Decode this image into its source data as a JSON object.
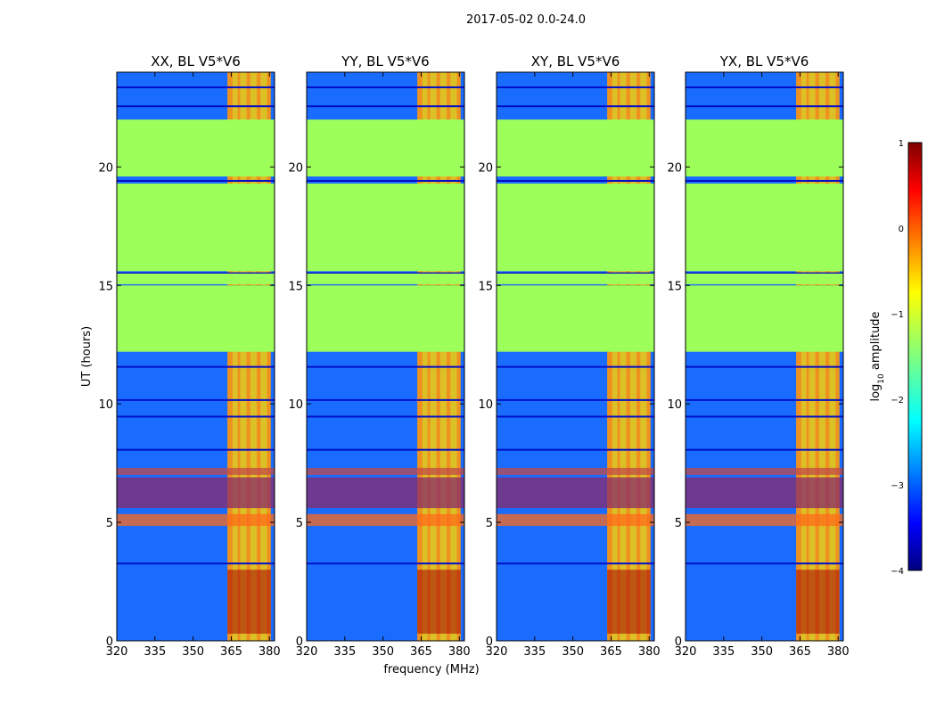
{
  "suptitle": "2017-05-02 0.0-24.0",
  "ylabel": "UT (hours)",
  "xlabel": "frequency (MHz)",
  "cbar_label_prefix": "log",
  "cbar_label_sub": "10",
  "cbar_label_suffix": " amplitude",
  "colors": {
    "flagged": "#9cff5a",
    "low": "#0010c8",
    "mid": "#1a6cff",
    "hot": "#ff6a1a",
    "peak": "#a40000"
  },
  "chart_data": {
    "type": "heatmap",
    "xlim": [
      320,
      382
    ],
    "ylim": [
      0,
      24
    ],
    "xticks": [
      320,
      335,
      350,
      365,
      380
    ],
    "yticks": [
      0,
      5,
      10,
      15,
      20
    ],
    "colorbar": {
      "min": -4,
      "max": 1,
      "ticks": [
        -4,
        -3,
        -2,
        -1,
        0,
        1
      ],
      "label": "log10 amplitude"
    },
    "flagged_rows_hours": [
      [
        12.2,
        15.0
      ],
      [
        15.05,
        15.5
      ],
      [
        15.6,
        19.3
      ],
      [
        19.6,
        22.0
      ]
    ],
    "rfi_band_mhz": [
      363.5,
      380.5
    ],
    "rfi_channels_mhz": [
      363.5,
      365.5,
      367.5,
      368.5,
      371.0,
      372.5,
      375.0,
      376.5,
      379.0,
      380.5
    ],
    "panels": [
      {
        "title": "XX, BL V5*V6",
        "pol": "XX",
        "baseline": "V5*V6"
      },
      {
        "title": "YY, BL V5*V6",
        "pol": "YY",
        "baseline": "V5*V6"
      },
      {
        "title": "XY, BL V5*V6",
        "pol": "XY",
        "baseline": "V5*V6"
      },
      {
        "title": "YX, BL V5*V6",
        "pol": "YX",
        "baseline": "V5*V6"
      }
    ]
  }
}
